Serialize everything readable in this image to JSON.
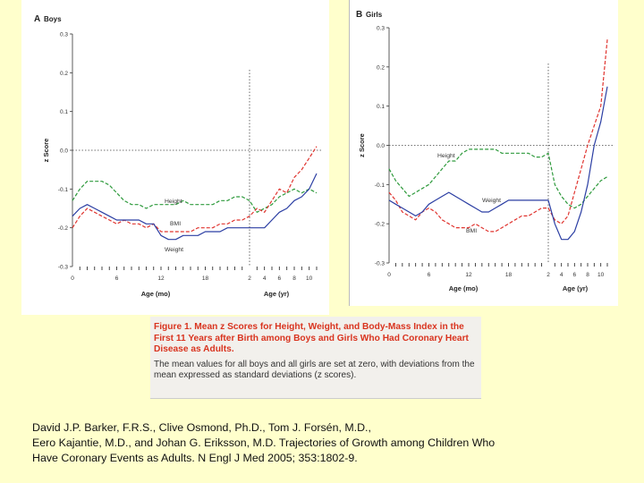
{
  "chart_data": [
    {
      "type": "line",
      "panel_label": "A",
      "title": "Boys",
      "ylabel": "z Score",
      "xlabel_left": "Age (mo)",
      "xlabel_right": "Age (yr)",
      "ylim": [
        -0.3,
        0.3
      ],
      "yticks": [
        0.3,
        0.2,
        0.1,
        0.0,
        -0.1,
        -0.2,
        -0.3
      ],
      "ytick_labels": [
        "0.3",
        "0.2",
        "0.1",
        "0.0",
        "-0.1",
        "-0.2",
        "-0.3"
      ],
      "xticks_left": [
        "0",
        "6",
        "12",
        "18"
      ],
      "xticks_right": [
        "2",
        "4",
        "6",
        "8",
        "10"
      ],
      "divider": "2 yr",
      "series": [
        {
          "name": "Height",
          "color": "#2e9a3c",
          "dash": "dashed",
          "x": [
            0,
            1,
            2,
            3,
            4,
            5,
            6,
            7,
            8,
            9,
            10,
            11,
            12,
            13,
            14,
            15,
            16,
            17,
            18,
            19,
            20,
            21,
            22,
            23,
            24,
            "3yr",
            "4yr",
            "5yr",
            "6yr",
            "7yr",
            "8yr",
            "9yr",
            "10yr",
            "11yr"
          ],
          "values": [
            -0.13,
            -0.1,
            -0.08,
            -0.08,
            -0.08,
            -0.09,
            -0.11,
            -0.13,
            -0.14,
            -0.14,
            -0.15,
            -0.14,
            -0.14,
            -0.14,
            -0.14,
            -0.13,
            -0.14,
            -0.14,
            -0.14,
            -0.14,
            -0.13,
            -0.13,
            -0.12,
            -0.12,
            -0.13,
            -0.16,
            -0.15,
            -0.14,
            -0.12,
            -0.11,
            -0.1,
            -0.11,
            -0.1,
            -0.11
          ]
        },
        {
          "name": "BMI",
          "color": "#e0342f",
          "dash": "dashed",
          "x": [
            0,
            1,
            2,
            3,
            4,
            5,
            6,
            7,
            8,
            9,
            10,
            11,
            12,
            13,
            14,
            15,
            16,
            17,
            18,
            19,
            20,
            21,
            22,
            23,
            24,
            "3yr",
            "4yr",
            "5yr",
            "6yr",
            "7yr",
            "8yr",
            "9yr",
            "10yr",
            "11yr"
          ],
          "values": [
            -0.2,
            -0.17,
            -0.15,
            -0.16,
            -0.17,
            -0.18,
            -0.19,
            -0.18,
            -0.19,
            -0.19,
            -0.2,
            -0.19,
            -0.21,
            -0.21,
            -0.21,
            -0.21,
            -0.21,
            -0.2,
            -0.2,
            -0.2,
            -0.19,
            -0.19,
            -0.18,
            -0.18,
            -0.17,
            -0.15,
            -0.16,
            -0.13,
            -0.1,
            -0.11,
            -0.07,
            -0.05,
            -0.02,
            0.01
          ]
        },
        {
          "name": "Weight",
          "color": "#2b3ea3",
          "dash": "solid",
          "x": [
            0,
            1,
            2,
            3,
            4,
            5,
            6,
            7,
            8,
            9,
            10,
            11,
            12,
            13,
            14,
            15,
            16,
            17,
            18,
            19,
            20,
            21,
            22,
            23,
            24,
            "3yr",
            "4yr",
            "5yr",
            "6yr",
            "7yr",
            "8yr",
            "9yr",
            "10yr",
            "11yr"
          ],
          "values": [
            -0.17,
            -0.15,
            -0.14,
            -0.15,
            -0.16,
            -0.17,
            -0.18,
            -0.18,
            -0.18,
            -0.18,
            -0.19,
            -0.19,
            -0.22,
            -0.23,
            -0.23,
            -0.22,
            -0.22,
            -0.22,
            -0.21,
            -0.21,
            -0.21,
            -0.2,
            -0.2,
            -0.2,
            -0.2,
            -0.2,
            -0.2,
            -0.18,
            -0.16,
            -0.15,
            -0.13,
            -0.12,
            -0.1,
            -0.06
          ]
        }
      ]
    },
    {
      "type": "line",
      "panel_label": "B",
      "title": "Girls",
      "ylabel": "z Score",
      "xlabel_left": "Age (mo)",
      "xlabel_right": "Age (yr)",
      "ylim": [
        -0.3,
        0.3
      ],
      "yticks": [
        0.3,
        0.2,
        0.1,
        0.0,
        -0.1,
        -0.2,
        -0.3
      ],
      "ytick_labels": [
        "0.3",
        "0.2",
        "0.1",
        "0.0",
        "-0.1",
        "-0.2",
        "-0.3"
      ],
      "xticks_left": [
        "0",
        "6",
        "12",
        "18"
      ],
      "xticks_right": [
        "2",
        "4",
        "6",
        "8",
        "10"
      ],
      "divider": "2 yr",
      "series": [
        {
          "name": "Height",
          "color": "#2e9a3c",
          "dash": "dashed",
          "x": [
            0,
            1,
            2,
            3,
            4,
            5,
            6,
            7,
            8,
            9,
            10,
            11,
            12,
            13,
            14,
            15,
            16,
            17,
            18,
            19,
            20,
            21,
            22,
            23,
            24,
            "3yr",
            "4yr",
            "5yr",
            "6yr",
            "7yr",
            "8yr",
            "9yr",
            "10yr",
            "11yr"
          ],
          "values": [
            -0.06,
            -0.09,
            -0.11,
            -0.13,
            -0.12,
            -0.11,
            -0.1,
            -0.08,
            -0.06,
            -0.04,
            -0.04,
            -0.02,
            -0.01,
            -0.01,
            -0.01,
            -0.01,
            -0.01,
            -0.02,
            -0.02,
            -0.02,
            -0.02,
            -0.02,
            -0.03,
            -0.03,
            -0.02,
            -0.1,
            -0.13,
            -0.15,
            -0.16,
            -0.15,
            -0.13,
            -0.11,
            -0.09,
            -0.08
          ]
        },
        {
          "name": "BMI",
          "color": "#e0342f",
          "dash": "dashed",
          "x": [
            0,
            1,
            2,
            3,
            4,
            5,
            6,
            7,
            8,
            9,
            10,
            11,
            12,
            13,
            14,
            15,
            16,
            17,
            18,
            19,
            20,
            21,
            22,
            23,
            24,
            "3yr",
            "4yr",
            "5yr",
            "6yr",
            "7yr",
            "8yr",
            "9yr",
            "10yr",
            "11yr"
          ],
          "values": [
            -0.12,
            -0.14,
            -0.17,
            -0.18,
            -0.19,
            -0.17,
            -0.16,
            -0.17,
            -0.19,
            -0.2,
            -0.21,
            -0.21,
            -0.21,
            -0.2,
            -0.21,
            -0.22,
            -0.22,
            -0.21,
            -0.2,
            -0.19,
            -0.18,
            -0.18,
            -0.17,
            -0.16,
            -0.16,
            -0.19,
            -0.2,
            -0.18,
            -0.12,
            -0.06,
            0.0,
            0.05,
            0.1,
            0.27
          ]
        },
        {
          "name": "Weight",
          "color": "#2b3ea3",
          "dash": "solid",
          "x": [
            0,
            1,
            2,
            3,
            4,
            5,
            6,
            7,
            8,
            9,
            10,
            11,
            12,
            13,
            14,
            15,
            16,
            17,
            18,
            19,
            20,
            21,
            22,
            23,
            24,
            "3yr",
            "4yr",
            "5yr",
            "6yr",
            "7yr",
            "8yr",
            "9yr",
            "10yr",
            "11yr"
          ],
          "values": [
            -0.14,
            -0.15,
            -0.16,
            -0.17,
            -0.18,
            -0.17,
            -0.15,
            -0.14,
            -0.13,
            -0.12,
            -0.13,
            -0.14,
            -0.15,
            -0.16,
            -0.17,
            -0.17,
            -0.16,
            -0.15,
            -0.14,
            -0.14,
            -0.14,
            -0.14,
            -0.14,
            -0.14,
            -0.14,
            -0.2,
            -0.24,
            -0.24,
            -0.22,
            -0.17,
            -0.1,
            0.0,
            0.06,
            0.15
          ]
        }
      ]
    }
  ],
  "caption": {
    "title": "Figure 1. Mean z Scores for Height, Weight, and Body-Mass Index in the First 11 Years after Birth among Boys and Girls Who Had Coronary Heart Disease as Adults.",
    "body": "The mean values for all boys and all girls are set at zero, with deviations from the mean expressed as standard deviations (z scores)."
  },
  "citation": {
    "line1": "David J.P. Barker, F.R.S., Clive Osmond, Ph.D., Tom J. Forsén, M.D.,",
    "line2": "Eero Kajantie, M.D., and Johan G. Eriksson, M.D.  Trajectories of Growth among Children Who",
    "line3": "Have Coronary Events as Adults. N Engl J Med 2005; 353:1802-9."
  }
}
